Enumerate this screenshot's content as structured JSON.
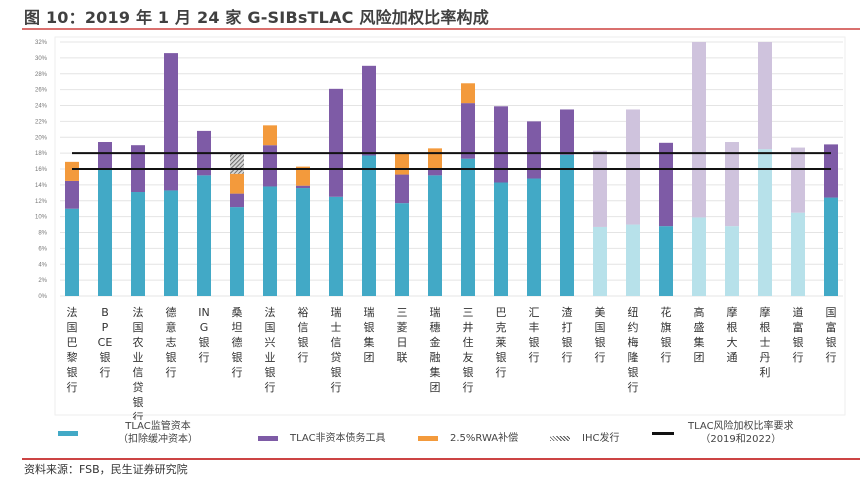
{
  "title": "图 10：2019 年 1 月 24 家 G-SIBsTLAC 风险加权比率构成",
  "source": "资料来源：FSB，民生证券研究院",
  "colors": {
    "capital": "#42a9c6",
    "capital_light": "#b7e1ea",
    "debt": "#7e5ba6",
    "debt_light": "#cfc3dd",
    "rwa": "#f39a3c",
    "ihc": "#666666",
    "requirement": "#111111"
  },
  "chart_data": {
    "type": "bar",
    "stacked": true,
    "title": "2019 年 1 月 24 家 G-SIBsTLAC 风险加权比率构成",
    "xlabel": "",
    "ylabel": "",
    "ylim": [
      0,
      32
    ],
    "yticks": [
      "0%",
      "2%",
      "4%",
      "6%",
      "8%",
      "10%",
      "12%",
      "14%",
      "16%",
      "18%",
      "20%",
      "22%",
      "24%",
      "26%",
      "28%",
      "30%",
      "32%"
    ],
    "ytick_values": [
      0,
      2,
      4,
      6,
      8,
      10,
      12,
      14,
      16,
      18,
      20,
      22,
      24,
      26,
      28,
      30,
      32
    ],
    "grid": true,
    "legend_position": "bottom",
    "categories": [
      "法国巴黎银行",
      "BPCE银行",
      "法国农业信贷银行",
      "德意志银行",
      "ING银行",
      "桑坦德银行",
      "法国兴业银行",
      "裕信银行",
      "瑞士信贷银行",
      "瑞银集团",
      "三菱日联",
      "瑞穗金融集团",
      "三井住友银行",
      "巴克莱银行",
      "汇丰银行",
      "渣打银行",
      "美国银行",
      "纽约梅隆银行",
      "花旗银行",
      "高盛集团",
      "摩根大通",
      "摩根士丹利",
      "道富银行",
      "国富银行"
    ],
    "category_labels": [
      [
        "法",
        "国",
        "巴",
        "黎",
        "银",
        "行"
      ],
      [
        "B",
        "P",
        "CE",
        "银",
        "行"
      ],
      [
        "法",
        "国",
        "农",
        "业",
        "信",
        "贷",
        "银",
        "行"
      ],
      [
        "德",
        "意",
        "志",
        "银",
        "行"
      ],
      [
        "IN",
        "G",
        "银",
        "行"
      ],
      [
        "桑",
        "坦",
        "德",
        "银",
        "行"
      ],
      [
        "法",
        "国",
        "兴",
        "业",
        "银",
        "行"
      ],
      [
        "裕",
        "信",
        "银",
        "行"
      ],
      [
        "瑞",
        "士",
        "信",
        "贷",
        "银",
        "行"
      ],
      [
        "瑞",
        "银",
        "集",
        "团"
      ],
      [
        "三",
        "菱",
        "日",
        "联"
      ],
      [
        "瑞",
        "穗",
        "金",
        "融",
        "集",
        "团"
      ],
      [
        "三",
        "井",
        "住",
        "友",
        "银",
        "行"
      ],
      [
        "巴",
        "克",
        "莱",
        "银",
        "行"
      ],
      [
        "汇",
        "丰",
        "银",
        "行"
      ],
      [
        "渣",
        "打",
        "银",
        "行"
      ],
      [
        "美",
        "国",
        "银",
        "行"
      ],
      [
        "纽",
        "约",
        "梅",
        "隆",
        "银",
        "行"
      ],
      [
        "花",
        "旗",
        "银",
        "行"
      ],
      [
        "高",
        "盛",
        "集",
        "团"
      ],
      [
        "摩",
        "根",
        "大",
        "通"
      ],
      [
        "摩",
        "根",
        "士",
        "丹",
        "利"
      ],
      [
        "道",
        "富",
        "银",
        "行"
      ],
      [
        "国",
        "富",
        "银",
        "行"
      ]
    ],
    "light_shade": [
      false,
      false,
      false,
      false,
      false,
      false,
      false,
      false,
      false,
      false,
      false,
      false,
      false,
      false,
      false,
      false,
      true,
      true,
      false,
      true,
      true,
      true,
      true,
      false
    ],
    "series": [
      {
        "name": "TLAC监管资本（扣除缓冲资本）",
        "key": "capital",
        "values": [
          11.0,
          15.9,
          13.1,
          13.3,
          15.2,
          11.2,
          13.8,
          13.6,
          12.5,
          17.7,
          11.7,
          15.2,
          17.3,
          14.3,
          14.8,
          17.8,
          8.7,
          9.0,
          8.8,
          9.9,
          8.8,
          18.5,
          10.5,
          12.4
        ]
      },
      {
        "name": "TLAC非资本债务工具",
        "key": "debt",
        "values": [
          3.5,
          3.5,
          5.9,
          17.3,
          5.6,
          1.7,
          5.2,
          0.3,
          13.6,
          11.3,
          3.6,
          0.8,
          7.0,
          9.6,
          7.2,
          5.7,
          9.6,
          14.5,
          10.5,
          22.1,
          10.6,
          13.5,
          8.2,
          6.7
        ]
      },
      {
        "name": "2.5%RWA补偿",
        "key": "rwa",
        "values": [
          2.4,
          0,
          0,
          0,
          0,
          2.5,
          2.5,
          2.4,
          0,
          0,
          2.7,
          2.6,
          2.5,
          0,
          0,
          0,
          0,
          0,
          0,
          0,
          0,
          0,
          0,
          0
        ]
      },
      {
        "name": "IHC发行",
        "key": "ihc",
        "values": [
          0,
          0,
          0,
          0,
          0,
          2.6,
          0,
          0,
          0,
          0,
          0,
          0,
          0,
          0,
          0,
          0,
          0,
          0,
          0,
          0,
          0,
          0,
          0,
          0
        ]
      }
    ],
    "reference_lines": [
      {
        "name": "TLAC风险加权比率要求（2019）",
        "value": 16
      },
      {
        "name": "TLAC风险加权比率要求（2022）",
        "value": 18
      }
    ]
  },
  "legend": [
    {
      "key": "capital",
      "line1": "TLAC监管资本",
      "line2": "（扣除缓冲资本）"
    },
    {
      "key": "debt",
      "line1": "TLAC非资本债务工具",
      "line2": ""
    },
    {
      "key": "rwa",
      "line1": "2.5%RWA补偿",
      "line2": ""
    },
    {
      "key": "ihc",
      "line1": "IHC发行",
      "line2": ""
    },
    {
      "key": "requirement",
      "line1": "TLAC风险加权比率要求",
      "line2": "（2019和2022）"
    }
  ]
}
